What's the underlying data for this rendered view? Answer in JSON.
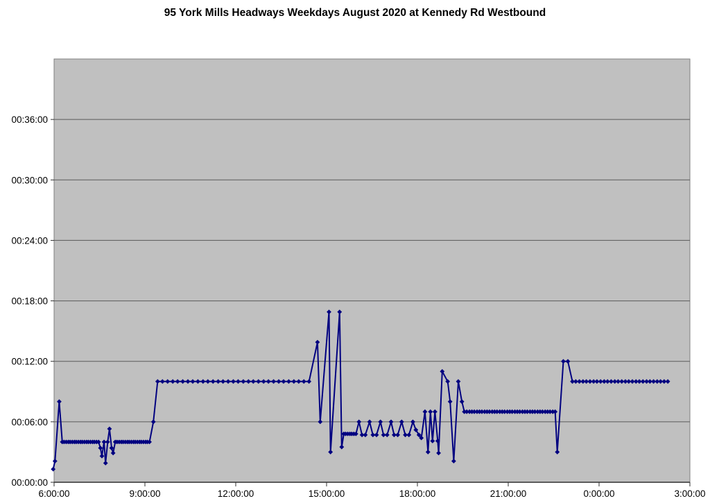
{
  "chart_data": {
    "type": "line",
    "title": "95 York Mills Headways Weekdays August 2020 at Kennedy Rd Westbound",
    "xlabel": "",
    "ylabel": "",
    "x_unit": "time of day (hours, 24h+ past midnight)",
    "y_unit": "headway (minutes)",
    "xlim": [
      6,
      27
    ],
    "ylim": [
      0,
      42
    ],
    "grid": "horizontal",
    "legend": "none",
    "plot_bg": "#c0c0c0",
    "line_color": "#000080",
    "grid_color": "#5a5a5a",
    "border_color": "#7f7f7f",
    "axis_color": "#303030",
    "x_ticks": [
      {
        "h": 6,
        "label": "6:00:00"
      },
      {
        "h": 9,
        "label": "9:00:00"
      },
      {
        "h": 12,
        "label": "12:00:00"
      },
      {
        "h": 15,
        "label": "15:00:00"
      },
      {
        "h": 18,
        "label": "18:00:00"
      },
      {
        "h": 21,
        "label": "21:00:00"
      },
      {
        "h": 24,
        "label": "0:00:00"
      },
      {
        "h": 27,
        "label": "3:00:00"
      }
    ],
    "y_ticks": [
      {
        "m": 0,
        "label": "00:00:00"
      },
      {
        "m": 6,
        "label": "00:06:00"
      },
      {
        "m": 12,
        "label": "00:12:00"
      },
      {
        "m": 18,
        "label": "00:18:00"
      },
      {
        "m": 24,
        "label": "00:24:00"
      },
      {
        "m": 30,
        "label": "00:30:00"
      },
      {
        "m": 36,
        "label": "00:36:00"
      }
    ],
    "series": [
      {
        "name": "headway-minutes",
        "marker": "diamond",
        "points": [
          [
            5.97,
            1.3
          ],
          [
            6.03,
            2.1
          ],
          [
            6.17,
            8.0
          ],
          [
            6.27,
            4.0
          ],
          [
            6.33,
            4.0
          ],
          [
            6.4,
            4.0
          ],
          [
            6.47,
            4.0
          ],
          [
            6.53,
            4.0
          ],
          [
            6.6,
            4.0
          ],
          [
            6.67,
            4.0
          ],
          [
            6.73,
            4.0
          ],
          [
            6.8,
            4.0
          ],
          [
            6.87,
            4.0
          ],
          [
            6.93,
            4.0
          ],
          [
            7.0,
            4.0
          ],
          [
            7.07,
            4.0
          ],
          [
            7.13,
            4.0
          ],
          [
            7.2,
            4.0
          ],
          [
            7.27,
            4.0
          ],
          [
            7.33,
            4.0
          ],
          [
            7.4,
            4.0
          ],
          [
            7.47,
            4.0
          ],
          [
            7.53,
            3.4
          ],
          [
            7.58,
            2.6
          ],
          [
            7.65,
            4.0
          ],
          [
            7.7,
            1.9
          ],
          [
            7.77,
            4.0
          ],
          [
            7.83,
            5.3
          ],
          [
            7.9,
            3.4
          ],
          [
            7.95,
            2.9
          ],
          [
            8.02,
            4.0
          ],
          [
            8.08,
            4.0
          ],
          [
            8.15,
            4.0
          ],
          [
            8.22,
            4.0
          ],
          [
            8.28,
            4.0
          ],
          [
            8.35,
            4.0
          ],
          [
            8.42,
            4.0
          ],
          [
            8.48,
            4.0
          ],
          [
            8.55,
            4.0
          ],
          [
            8.62,
            4.0
          ],
          [
            8.68,
            4.0
          ],
          [
            8.75,
            4.0
          ],
          [
            8.82,
            4.0
          ],
          [
            8.88,
            4.0
          ],
          [
            8.95,
            4.0
          ],
          [
            9.02,
            4.0
          ],
          [
            9.08,
            4.0
          ],
          [
            9.15,
            4.0
          ],
          [
            9.28,
            6.0
          ],
          [
            9.42,
            10.0
          ],
          [
            9.58,
            10.0
          ],
          [
            9.75,
            10.0
          ],
          [
            9.92,
            10.0
          ],
          [
            10.08,
            10.0
          ],
          [
            10.25,
            10.0
          ],
          [
            10.42,
            10.0
          ],
          [
            10.58,
            10.0
          ],
          [
            10.75,
            10.0
          ],
          [
            10.92,
            10.0
          ],
          [
            11.08,
            10.0
          ],
          [
            11.25,
            10.0
          ],
          [
            11.42,
            10.0
          ],
          [
            11.58,
            10.0
          ],
          [
            11.75,
            10.0
          ],
          [
            11.92,
            10.0
          ],
          [
            12.08,
            10.0
          ],
          [
            12.25,
            10.0
          ],
          [
            12.42,
            10.0
          ],
          [
            12.58,
            10.0
          ],
          [
            12.75,
            10.0
          ],
          [
            12.92,
            10.0
          ],
          [
            13.08,
            10.0
          ],
          [
            13.25,
            10.0
          ],
          [
            13.42,
            10.0
          ],
          [
            13.58,
            10.0
          ],
          [
            13.75,
            10.0
          ],
          [
            13.92,
            10.0
          ],
          [
            14.08,
            10.0
          ],
          [
            14.25,
            10.0
          ],
          [
            14.42,
            10.0
          ],
          [
            14.7,
            13.9
          ],
          [
            14.79,
            6.0
          ],
          [
            15.08,
            16.9
          ],
          [
            15.13,
            3.0
          ],
          [
            15.43,
            16.9
          ],
          [
            15.5,
            3.5
          ],
          [
            15.57,
            4.8
          ],
          [
            15.63,
            4.8
          ],
          [
            15.7,
            4.8
          ],
          [
            15.77,
            4.8
          ],
          [
            15.83,
            4.8
          ],
          [
            15.9,
            4.8
          ],
          [
            15.97,
            4.8
          ],
          [
            16.07,
            6.0
          ],
          [
            16.17,
            4.7
          ],
          [
            16.28,
            4.7
          ],
          [
            16.42,
            6.0
          ],
          [
            16.53,
            4.7
          ],
          [
            16.65,
            4.7
          ],
          [
            16.78,
            6.0
          ],
          [
            16.88,
            4.7
          ],
          [
            17.0,
            4.7
          ],
          [
            17.13,
            6.0
          ],
          [
            17.23,
            4.7
          ],
          [
            17.35,
            4.7
          ],
          [
            17.48,
            6.0
          ],
          [
            17.6,
            4.7
          ],
          [
            17.72,
            4.7
          ],
          [
            17.85,
            6.0
          ],
          [
            17.95,
            5.2
          ],
          [
            18.05,
            4.7
          ],
          [
            18.13,
            4.4
          ],
          [
            18.25,
            7.0
          ],
          [
            18.35,
            3.0
          ],
          [
            18.43,
            7.0
          ],
          [
            18.5,
            4.1
          ],
          [
            18.58,
            7.0
          ],
          [
            18.67,
            4.1
          ],
          [
            18.7,
            2.9
          ],
          [
            18.82,
            11.0
          ],
          [
            19.0,
            10.0
          ],
          [
            19.08,
            8.0
          ],
          [
            19.2,
            2.1
          ],
          [
            19.35,
            10.0
          ],
          [
            19.47,
            8.0
          ],
          [
            19.55,
            7.0
          ],
          [
            19.63,
            7.0
          ],
          [
            19.72,
            7.0
          ],
          [
            19.8,
            7.0
          ],
          [
            19.88,
            7.0
          ],
          [
            19.97,
            7.0
          ],
          [
            20.05,
            7.0
          ],
          [
            20.13,
            7.0
          ],
          [
            20.22,
            7.0
          ],
          [
            20.3,
            7.0
          ],
          [
            20.38,
            7.0
          ],
          [
            20.47,
            7.0
          ],
          [
            20.55,
            7.0
          ],
          [
            20.63,
            7.0
          ],
          [
            20.72,
            7.0
          ],
          [
            20.8,
            7.0
          ],
          [
            20.88,
            7.0
          ],
          [
            20.97,
            7.0
          ],
          [
            21.05,
            7.0
          ],
          [
            21.13,
            7.0
          ],
          [
            21.22,
            7.0
          ],
          [
            21.3,
            7.0
          ],
          [
            21.38,
            7.0
          ],
          [
            21.47,
            7.0
          ],
          [
            21.55,
            7.0
          ],
          [
            21.63,
            7.0
          ],
          [
            21.72,
            7.0
          ],
          [
            21.8,
            7.0
          ],
          [
            21.88,
            7.0
          ],
          [
            21.97,
            7.0
          ],
          [
            22.05,
            7.0
          ],
          [
            22.13,
            7.0
          ],
          [
            22.22,
            7.0
          ],
          [
            22.3,
            7.0
          ],
          [
            22.38,
            7.0
          ],
          [
            22.47,
            7.0
          ],
          [
            22.55,
            7.0
          ],
          [
            22.62,
            3.0
          ],
          [
            22.82,
            12.0
          ],
          [
            22.97,
            12.0
          ],
          [
            23.12,
            10.0
          ],
          [
            23.23,
            10.0
          ],
          [
            23.35,
            10.0
          ],
          [
            23.47,
            10.0
          ],
          [
            23.58,
            10.0
          ],
          [
            23.7,
            10.0
          ],
          [
            23.82,
            10.0
          ],
          [
            23.93,
            10.0
          ],
          [
            24.05,
            10.0
          ],
          [
            24.17,
            10.0
          ],
          [
            24.28,
            10.0
          ],
          [
            24.4,
            10.0
          ],
          [
            24.52,
            10.0
          ],
          [
            24.63,
            10.0
          ],
          [
            24.75,
            10.0
          ],
          [
            24.87,
            10.0
          ],
          [
            24.98,
            10.0
          ],
          [
            25.1,
            10.0
          ],
          [
            25.22,
            10.0
          ],
          [
            25.33,
            10.0
          ],
          [
            25.45,
            10.0
          ],
          [
            25.57,
            10.0
          ],
          [
            25.68,
            10.0
          ],
          [
            25.8,
            10.0
          ],
          [
            25.92,
            10.0
          ],
          [
            26.03,
            10.0
          ],
          [
            26.15,
            10.0
          ],
          [
            26.27,
            10.0
          ]
        ]
      }
    ]
  }
}
